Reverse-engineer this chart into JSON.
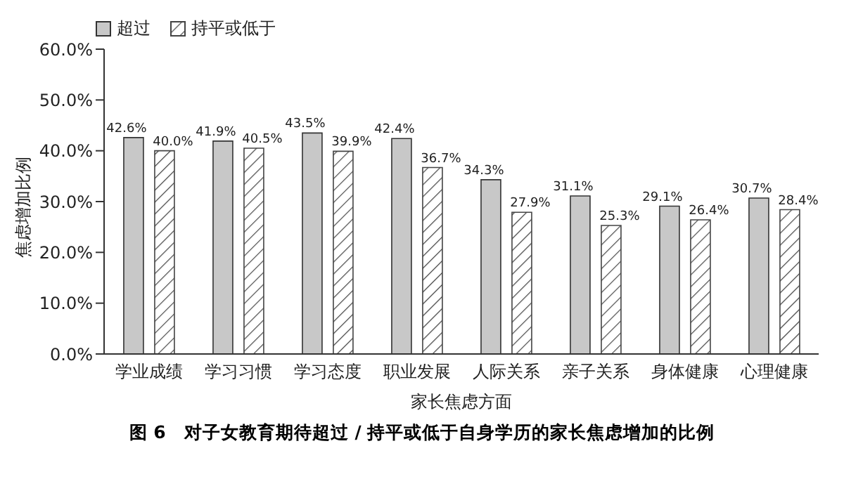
{
  "chart_data": {
    "type": "bar",
    "title": "图 6　对子女教育期待超过 / 持平或低于自身学历的家长焦虑增加的比例",
    "xlabel": "家长焦虑方面",
    "ylabel": "焦虑增加比例",
    "categories": [
      "学业成绩",
      "学习习惯",
      "学习态度",
      "职业发展",
      "人际关系",
      "亲子关系",
      "身体健康",
      "心理健康"
    ],
    "series": [
      {
        "name": "超过",
        "color": "#c8c8c8",
        "values": [
          42.6,
          41.9,
          43.5,
          42.4,
          34.3,
          31.1,
          29.1,
          30.7
        ],
        "value_labels": [
          "42.6%",
          "41.9%",
          "43.5%",
          "42.4%",
          "34.3%",
          "31.1%",
          "29.1%",
          "30.7%"
        ]
      },
      {
        "name": "持平或低于",
        "color": "#444444",
        "values": [
          40.0,
          40.5,
          39.9,
          36.7,
          27.9,
          25.3,
          26.4,
          28.4
        ],
        "value_labels": [
          "40.0%",
          "40.5%",
          "39.9%",
          "36.7%",
          "27.9%",
          "25.3%",
          "26.4%",
          "28.4%"
        ]
      }
    ],
    "ylim": [
      0,
      60
    ],
    "yticks": [
      {
        "value": 0,
        "label": "0.0%"
      },
      {
        "value": 10,
        "label": "10.0%"
      },
      {
        "value": 20,
        "label": "20.0%"
      },
      {
        "value": 30,
        "label": "30.0%"
      },
      {
        "value": 40,
        "label": "40.0%"
      },
      {
        "value": 50,
        "label": "50.0%"
      },
      {
        "value": 60,
        "label": "60.0%"
      }
    ],
    "legend": "top left",
    "grid": false
  }
}
